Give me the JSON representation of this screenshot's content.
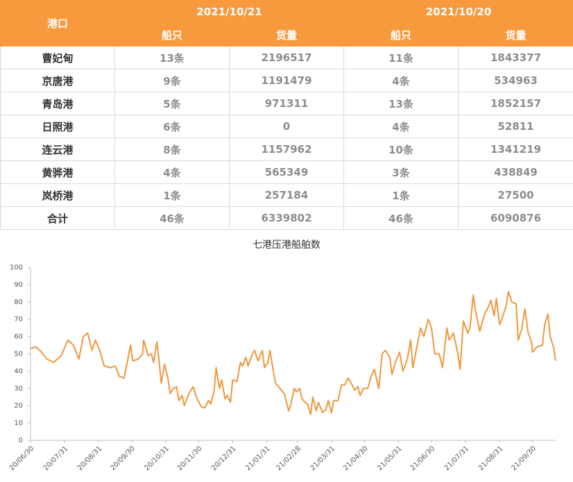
{
  "table": {
    "header": [
      "港口",
      "2021/10/21",
      "2021/10/20"
    ],
    "subheader": [
      "船只",
      "货量",
      "船只",
      "货量"
    ],
    "rows": [
      [
        "曹妃甸",
        "13条",
        "2196517",
        "11条",
        "1843377"
      ],
      [
        "京唐港",
        "9条",
        "1191479",
        "4条",
        "534963"
      ],
      [
        "青岛港",
        "5条",
        "971311",
        "13条",
        "1852157"
      ],
      [
        "日照港",
        "6条",
        "0",
        "4条",
        "52811"
      ],
      [
        "连云港",
        "8条",
        "1157962",
        "10条",
        "1341219"
      ],
      [
        "黄骅港",
        "4条",
        "565349",
        "3条",
        "438849"
      ],
      [
        "岚桥港",
        "1条",
        "257184",
        "1条",
        "27500"
      ],
      [
        "合计",
        "46条",
        "6339802",
        "46条",
        "6090876"
      ]
    ]
  },
  "chart_data": {
    "type": "line",
    "title": "七港压港船舶数",
    "x": [
      "20/06/30",
      "20/07/05",
      "20/07/10",
      "20/07/15",
      "20/07/21",
      "20/07/28",
      "20/08/03",
      "20/08/08",
      "20/08/13",
      "20/08/17",
      "20/08/21",
      "20/08/25",
      "20/08/28",
      "20/09/01",
      "20/09/05",
      "20/09/11",
      "20/09/15",
      "20/09/19",
      "20/09/23",
      "20/09/26",
      "20/09/29",
      "20/10/01",
      "20/10/06",
      "20/10/10",
      "20/10/11",
      "20/10/15",
      "20/10/18",
      "20/10/20",
      "20/10/23",
      "20/10/25",
      "20/10/27",
      "20/10/30",
      "20/11/02",
      "20/11/04",
      "20/11/07",
      "20/11/10",
      "20/11/12",
      "20/11/15",
      "20/11/17",
      "20/11/21",
      "20/11/25",
      "20/11/28",
      "20/12/01",
      "20/12/03",
      "20/12/06",
      "20/12/09",
      "20/12/11",
      "20/12/14",
      "20/12/16",
      "20/12/19",
      "20/12/21",
      "20/12/24",
      "20/12/26",
      "20/12/29",
      "20/12/31",
      "21/01/04",
      "21/01/07",
      "21/01/09",
      "21/01/12",
      "21/01/14",
      "21/01/18",
      "21/01/20",
      "21/01/23",
      "21/01/27",
      "21/01/29",
      "21/02/01",
      "21/02/03",
      "21/02/06",
      "21/02/08",
      "21/02/12",
      "21/02/16",
      "21/02/20",
      "21/02/22",
      "21/02/25",
      "21/02/27",
      "21/03/02",
      "21/03/04",
      "21/03/07",
      "21/03/09",
      "21/03/12",
      "21/03/14",
      "21/03/17",
      "21/03/19",
      "21/03/23",
      "21/03/26",
      "21/03/28",
      "21/03/31",
      "21/04/02",
      "21/04/06",
      "21/04/09",
      "21/04/12",
      "21/04/15",
      "21/04/18",
      "21/04/21",
      "21/04/24",
      "21/04/26",
      "21/04/29",
      "21/05/03",
      "21/05/06",
      "21/05/09",
      "21/05/13",
      "21/05/16",
      "21/05/19",
      "21/05/23",
      "21/05/25",
      "21/05/28",
      "21/06/01",
      "21/06/04",
      "21/06/08",
      "21/06/11",
      "21/06/13",
      "21/06/17",
      "21/06/20",
      "21/06/23",
      "21/06/27",
      "21/06/30",
      "21/07/03",
      "21/07/07",
      "21/07/10",
      "21/07/14",
      "21/07/16",
      "21/07/20",
      "21/07/24",
      "21/07/26",
      "21/07/29",
      "21/08/02",
      "21/08/04",
      "21/08/07",
      "21/08/09",
      "21/08/13",
      "21/08/15",
      "21/08/18",
      "21/08/20",
      "21/08/23",
      "21/08/26",
      "21/08/28",
      "21/08/31",
      "21/09/02",
      "21/09/06",
      "21/09/08",
      "21/09/11",
      "21/09/15",
      "21/09/17",
      "21/09/20",
      "21/09/23",
      "21/09/26",
      "21/09/29",
      "21/09/30",
      "21/10/04",
      "21/10/09",
      "21/10/11",
      "21/10/14",
      "21/10/16",
      "21/10/19",
      "21/10/21"
    ],
    "series": [
      {
        "name": "七港压港船舶数",
        "color": "#f0973e",
        "values": [
          53,
          54,
          51,
          47,
          45,
          49,
          58,
          55,
          47,
          60,
          62,
          52,
          58,
          52,
          43,
          42,
          43,
          37,
          36,
          45,
          55,
          46,
          47,
          50,
          58,
          49,
          50,
          45,
          57,
          46,
          33,
          44,
          36,
          27,
          30,
          31,
          23,
          26,
          20,
          27,
          31,
          25,
          21,
          19,
          19,
          23,
          21,
          28,
          42,
          30,
          35,
          24,
          26,
          22,
          35,
          34,
          45,
          43,
          48,
          43,
          50,
          52,
          46,
          52,
          42,
          45,
          52,
          40,
          33,
          30,
          27,
          17,
          21,
          30,
          28,
          30,
          24,
          22,
          21,
          15,
          25,
          17,
          22,
          16,
          18,
          23,
          16,
          23,
          23,
          32,
          32,
          36,
          33,
          29,
          31,
          26,
          30,
          30,
          37,
          41,
          30,
          50,
          52,
          48,
          38,
          45,
          51,
          40,
          47,
          58,
          42,
          55,
          65,
          60,
          70,
          65,
          50,
          50,
          42,
          65,
          58,
          62,
          50,
          41,
          69,
          62,
          65,
          84,
          75,
          63,
          68,
          74,
          76,
          81,
          72,
          82,
          67,
          70,
          78,
          86,
          80,
          79,
          58,
          64,
          76,
          62,
          57,
          51,
          54,
          55,
          67,
          73,
          60,
          54,
          46
        ]
      }
    ],
    "xlim": [
      "20/06/30",
      "21/10/21"
    ],
    "xticks": [
      "20/06/30",
      "20/07/31",
      "20/08/31",
      "20/09/30",
      "20/10/31",
      "20/11/30",
      "20/12/31",
      "21/01/31",
      "21/02/28",
      "21/03/31",
      "21/04/30",
      "21/05/31",
      "21/06/30",
      "21/07/31",
      "21/08/31",
      "21/09/30"
    ],
    "ylim": [
      0,
      100
    ],
    "yticks": [
      0,
      10,
      20,
      30,
      40,
      50,
      60,
      70,
      80,
      90,
      100
    ],
    "grid": false
  }
}
